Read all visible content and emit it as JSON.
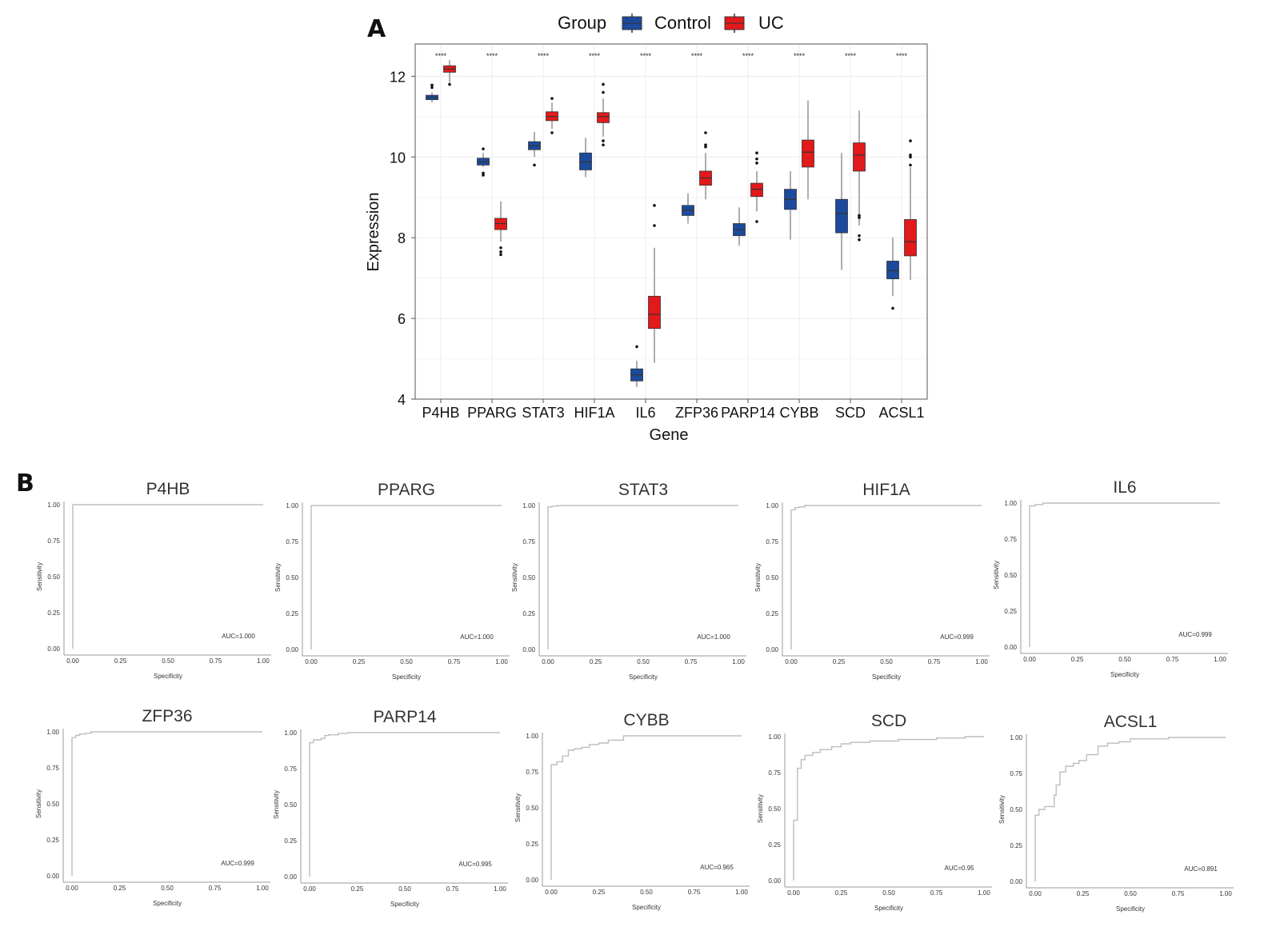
{
  "panel_labels": {
    "a": "A",
    "b": "B"
  },
  "colors": {
    "control": "#1c4a9c",
    "uc": "#e3191b",
    "whisker": "#9a9a9a",
    "roc_line": "#bdbdbd"
  },
  "chart_data": [
    {
      "type": "box",
      "panel": "A",
      "xlabel": "Gene",
      "ylabel": "Expression",
      "ylim": [
        4,
        12.8
      ],
      "yticks": [
        4,
        6,
        8,
        10,
        12
      ],
      "grid": true,
      "legend": {
        "title": "Group",
        "position": "top",
        "items": [
          "Control",
          "UC"
        ]
      },
      "categories": [
        "P4HB",
        "PPARG",
        "STAT3",
        "HIF1A",
        "IL6",
        "ZFP36",
        "PARP14",
        "CYBB",
        "SCD",
        "ACSL1"
      ],
      "significance": [
        "****",
        "****",
        "****",
        "****",
        "****",
        "****",
        "****",
        "****",
        "****",
        "****"
      ],
      "series": [
        {
          "name": "Control",
          "boxes": [
            {
              "min": 11.35,
              "q1": 11.42,
              "median": 11.48,
              "q3": 11.53,
              "max": 11.6,
              "outliers": [
                11.72,
                11.78
              ]
            },
            {
              "min": 9.75,
              "q1": 9.8,
              "median": 9.88,
              "q3": 9.97,
              "max": 10.1,
              "outliers": [
                9.6,
                9.55,
                10.2
              ]
            },
            {
              "min": 10.0,
              "q1": 10.18,
              "median": 10.28,
              "q3": 10.38,
              "max": 10.62,
              "outliers": [
                9.8
              ]
            },
            {
              "min": 9.5,
              "q1": 9.68,
              "median": 9.88,
              "q3": 10.1,
              "max": 10.48,
              "outliers": []
            },
            {
              "min": 4.3,
              "q1": 4.45,
              "median": 4.6,
              "q3": 4.75,
              "max": 4.95,
              "outliers": [
                5.3
              ]
            },
            {
              "min": 8.35,
              "q1": 8.55,
              "median": 8.68,
              "q3": 8.8,
              "max": 9.1,
              "outliers": []
            },
            {
              "min": 7.8,
              "q1": 8.05,
              "median": 8.2,
              "q3": 8.35,
              "max": 8.75,
              "outliers": []
            },
            {
              "min": 7.95,
              "q1": 8.7,
              "median": 8.95,
              "q3": 9.2,
              "max": 9.65,
              "outliers": []
            },
            {
              "min": 7.2,
              "q1": 8.12,
              "median": 8.6,
              "q3": 8.95,
              "max": 10.1,
              "outliers": []
            },
            {
              "min": 6.55,
              "q1": 6.98,
              "median": 7.18,
              "q3": 7.42,
              "max": 8.0,
              "outliers": [
                6.25
              ]
            }
          ]
        },
        {
          "name": "UC",
          "boxes": [
            {
              "min": 11.85,
              "q1": 12.1,
              "median": 12.18,
              "q3": 12.26,
              "max": 12.4,
              "outliers": [
                11.8
              ]
            },
            {
              "min": 7.9,
              "q1": 8.2,
              "median": 8.35,
              "q3": 8.48,
              "max": 8.9,
              "outliers": [
                7.75,
                7.65,
                7.58
              ]
            },
            {
              "min": 10.7,
              "q1": 10.9,
              "median": 11.0,
              "q3": 11.12,
              "max": 11.35,
              "outliers": [
                10.6,
                11.45
              ]
            },
            {
              "min": 10.5,
              "q1": 10.85,
              "median": 11.0,
              "q3": 11.1,
              "max": 11.45,
              "outliers": [
                10.4,
                10.3,
                11.6,
                11.8
              ]
            },
            {
              "min": 4.9,
              "q1": 5.75,
              "median": 6.1,
              "q3": 6.55,
              "max": 7.75,
              "outliers": [
                8.3,
                8.8
              ]
            },
            {
              "min": 8.95,
              "q1": 9.3,
              "median": 9.48,
              "q3": 9.65,
              "max": 10.1,
              "outliers": [
                10.25,
                10.3,
                10.6
              ]
            },
            {
              "min": 8.65,
              "q1": 9.02,
              "median": 9.2,
              "q3": 9.35,
              "max": 9.65,
              "outliers": [
                8.4,
                9.85,
                9.95,
                10.1
              ]
            },
            {
              "min": 8.95,
              "q1": 9.75,
              "median": 10.12,
              "q3": 10.42,
              "max": 11.4,
              "outliers": []
            },
            {
              "min": 8.3,
              "q1": 9.65,
              "median": 10.05,
              "q3": 10.35,
              "max": 11.15,
              "outliers": [
                8.55,
                8.5,
                8.05,
                7.95
              ]
            },
            {
              "min": 6.95,
              "q1": 7.55,
              "median": 7.9,
              "q3": 8.45,
              "max": 9.75,
              "outliers": [
                9.8,
                10.0,
                10.05,
                10.4
              ]
            }
          ]
        }
      ]
    },
    {
      "type": "line",
      "panel": "B",
      "title": "P4HB",
      "auc": "AUC=1.000",
      "xlabel": "Specificity",
      "ylabel": "Sensitivity",
      "xlim": [
        0,
        1
      ],
      "ylim": [
        0,
        1
      ],
      "ticks": [
        "0.00",
        "0.25",
        "0.50",
        "0.75",
        "1.00"
      ],
      "x": [
        0,
        0,
        1
      ],
      "y": [
        0,
        1,
        1
      ]
    },
    {
      "type": "line",
      "panel": "B",
      "title": "PPARG",
      "auc": "AUC=1.000",
      "xlabel": "Specificity",
      "ylabel": "Sensitivity",
      "xlim": [
        0,
        1
      ],
      "ylim": [
        0,
        1
      ],
      "ticks": [
        "0.00",
        "0.25",
        "0.50",
        "0.75",
        "1.00"
      ],
      "x": [
        0,
        0,
        1
      ],
      "y": [
        0,
        1,
        1
      ]
    },
    {
      "type": "line",
      "panel": "B",
      "title": "STAT3",
      "auc": "AUC=1.000",
      "xlabel": "Specificity",
      "ylabel": "Sensitivity",
      "xlim": [
        0,
        1
      ],
      "ylim": [
        0,
        1
      ],
      "ticks": [
        "0.00",
        "0.25",
        "0.50",
        "0.75",
        "1.00"
      ],
      "x": [
        0,
        0,
        0.02,
        0.02,
        0.05,
        0.05,
        1
      ],
      "y": [
        0,
        0.99,
        0.99,
        0.995,
        0.995,
        1,
        1
      ]
    },
    {
      "type": "line",
      "panel": "B",
      "title": "HIF1A",
      "auc": "AUC=0.999",
      "xlabel": "Specificity",
      "ylabel": "Sensitivity",
      "xlim": [
        0,
        1
      ],
      "ylim": [
        0,
        1
      ],
      "ticks": [
        "0.00",
        "0.25",
        "0.50",
        "0.75",
        "1.00"
      ],
      "x": [
        0,
        0,
        0.02,
        0.02,
        0.04,
        0.04,
        0.07,
        0.07,
        1
      ],
      "y": [
        0,
        0.97,
        0.97,
        0.985,
        0.985,
        0.99,
        0.99,
        1,
        1
      ]
    },
    {
      "type": "line",
      "panel": "B",
      "title": "IL6",
      "auc": "AUC=0.999",
      "xlabel": "Specificity",
      "ylabel": "Sensitivity",
      "xlim": [
        0,
        1
      ],
      "ylim": [
        0,
        1
      ],
      "ticks": [
        "0.00",
        "0.25",
        "0.50",
        "0.75",
        "1.00"
      ],
      "x": [
        0,
        0,
        0.03,
        0.03,
        0.07,
        0.07,
        1
      ],
      "y": [
        0,
        0.98,
        0.98,
        0.99,
        0.99,
        1,
        1
      ]
    },
    {
      "type": "line",
      "panel": "B",
      "title": "ZFP36",
      "auc": "AUC=0.999",
      "xlabel": "Specificity",
      "ylabel": "Sensitivity",
      "xlim": [
        0,
        1
      ],
      "ylim": [
        0,
        1
      ],
      "ticks": [
        "0.00",
        "0.25",
        "0.50",
        "0.75",
        "1.00"
      ],
      "x": [
        0,
        0,
        0.02,
        0.02,
        0.04,
        0.04,
        0.07,
        0.07,
        0.1,
        0.1,
        1
      ],
      "y": [
        0,
        0.96,
        0.96,
        0.975,
        0.975,
        0.985,
        0.985,
        0.99,
        0.99,
        1,
        1
      ]
    },
    {
      "type": "line",
      "panel": "B",
      "title": "PARP14",
      "auc": "AUC=0.995",
      "xlabel": "Specificity",
      "ylabel": "Sensitivity",
      "xlim": [
        0,
        1
      ],
      "ylim": [
        0,
        1
      ],
      "ticks": [
        "0.00",
        "0.25",
        "0.50",
        "0.75",
        "1.00"
      ],
      "x": [
        0,
        0,
        0.02,
        0.02,
        0.06,
        0.06,
        0.08,
        0.08,
        0.1,
        0.1,
        0.15,
        0.15,
        0.2,
        0.2,
        1
      ],
      "y": [
        0,
        0.93,
        0.93,
        0.95,
        0.95,
        0.96,
        0.96,
        0.98,
        0.98,
        0.985,
        0.985,
        0.995,
        0.995,
        1,
        1
      ]
    },
    {
      "type": "line",
      "panel": "B",
      "title": "CYBB",
      "auc": "AUC=0.965",
      "xlabel": "Specificity",
      "ylabel": "Sensitivity",
      "xlim": [
        0,
        1
      ],
      "ylim": [
        0,
        1
      ],
      "ticks": [
        "0.00",
        "0.25",
        "0.50",
        "0.75",
        "1.00"
      ],
      "x": [
        0,
        0,
        0.03,
        0.03,
        0.06,
        0.06,
        0.09,
        0.09,
        0.12,
        0.12,
        0.16,
        0.16,
        0.2,
        0.2,
        0.25,
        0.25,
        0.3,
        0.3,
        0.38,
        0.38,
        1
      ],
      "y": [
        0,
        0.8,
        0.8,
        0.82,
        0.82,
        0.86,
        0.86,
        0.9,
        0.9,
        0.91,
        0.91,
        0.92,
        0.92,
        0.94,
        0.94,
        0.95,
        0.95,
        0.97,
        0.97,
        1,
        1
      ]
    },
    {
      "type": "line",
      "panel": "B",
      "title": "SCD",
      "auc": "AUC=0.95",
      "xlabel": "Specificity",
      "ylabel": "Sensitivity",
      "xlim": [
        0,
        1
      ],
      "ylim": [
        0,
        1
      ],
      "ticks": [
        "0.00",
        "0.25",
        "0.50",
        "0.75",
        "1.00"
      ],
      "x": [
        0,
        0,
        0.02,
        0.02,
        0.04,
        0.04,
        0.06,
        0.06,
        0.1,
        0.1,
        0.14,
        0.14,
        0.2,
        0.2,
        0.25,
        0.25,
        0.3,
        0.3,
        0.4,
        0.4,
        0.55,
        0.55,
        0.75,
        0.75,
        0.9,
        0.9,
        1
      ],
      "y": [
        0,
        0.42,
        0.42,
        0.78,
        0.78,
        0.84,
        0.84,
        0.87,
        0.87,
        0.89,
        0.89,
        0.91,
        0.91,
        0.93,
        0.93,
        0.95,
        0.95,
        0.96,
        0.96,
        0.97,
        0.97,
        0.98,
        0.98,
        0.99,
        0.99,
        1,
        1
      ]
    },
    {
      "type": "line",
      "panel": "B",
      "title": "ACSL1",
      "auc": "AUC=0.891",
      "xlabel": "Specificity",
      "ylabel": "Sensitivity",
      "xlim": [
        0,
        1
      ],
      "ylim": [
        0,
        1
      ],
      "ticks": [
        "0.00",
        "0.25",
        "0.50",
        "0.75",
        "1.00"
      ],
      "x": [
        0,
        0,
        0.02,
        0.02,
        0.05,
        0.05,
        0.1,
        0.1,
        0.11,
        0.11,
        0.13,
        0.13,
        0.16,
        0.16,
        0.2,
        0.2,
        0.23,
        0.23,
        0.27,
        0.27,
        0.33,
        0.33,
        0.38,
        0.38,
        0.44,
        0.44,
        0.5,
        0.5,
        0.7,
        0.7,
        1
      ],
      "y": [
        0,
        0.46,
        0.46,
        0.5,
        0.5,
        0.52,
        0.52,
        0.6,
        0.6,
        0.67,
        0.67,
        0.76,
        0.76,
        0.8,
        0.8,
        0.82,
        0.82,
        0.84,
        0.84,
        0.88,
        0.88,
        0.94,
        0.94,
        0.96,
        0.96,
        0.97,
        0.97,
        0.99,
        0.99,
        1,
        1
      ]
    }
  ]
}
